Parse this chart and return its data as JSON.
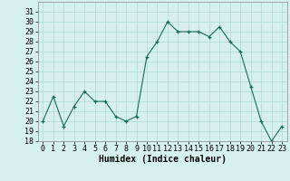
{
  "x": [
    0,
    1,
    2,
    3,
    4,
    5,
    6,
    7,
    8,
    9,
    10,
    11,
    12,
    13,
    14,
    15,
    16,
    17,
    18,
    19,
    20,
    21,
    22,
    23
  ],
  "y": [
    20,
    22.5,
    19.5,
    21.5,
    23,
    22,
    22,
    20.5,
    20,
    20.5,
    26.5,
    28,
    30,
    29,
    29,
    29,
    28.5,
    29.5,
    28,
    27,
    23.5,
    20,
    18,
    19.5
  ],
  "line_color": "#1a6b5a",
  "bg_color": "#d6f0ee",
  "grid_color": "#b0d8d4",
  "xlabel": "Humidex (Indice chaleur)",
  "ylim": [
    18,
    32
  ],
  "xlim": [
    -0.5,
    23.5
  ],
  "yticks": [
    18,
    19,
    20,
    21,
    22,
    23,
    24,
    25,
    26,
    27,
    28,
    29,
    30,
    31
  ],
  "xticks": [
    0,
    1,
    2,
    3,
    4,
    5,
    6,
    7,
    8,
    9,
    10,
    11,
    12,
    13,
    14,
    15,
    16,
    17,
    18,
    19,
    20,
    21,
    22,
    23
  ],
  "label_fontsize": 7,
  "tick_fontsize": 6
}
